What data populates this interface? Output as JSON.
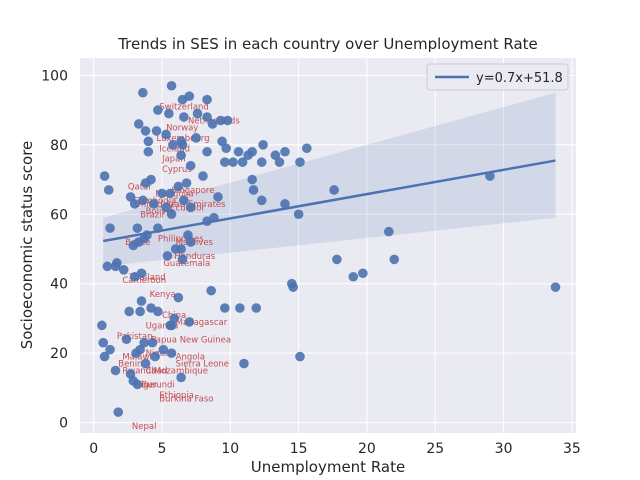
{
  "chart_data": {
    "type": "scatter",
    "title": "Trends in SES in each country over Unemployment Rate",
    "xlabel": "Unemployment Rate",
    "ylabel": "Socioeconomic status score",
    "xlim": [
      -1.0,
      35.3
    ],
    "ylim": [
      -3.0,
      105.0
    ],
    "xticks": [
      0,
      5,
      10,
      15,
      20,
      25,
      30,
      35
    ],
    "yticks": [
      0,
      20,
      40,
      60,
      80,
      100
    ],
    "grid": true,
    "legend": {
      "position": "top-right",
      "label": "y=0.7x+51.8"
    },
    "regression": {
      "slope": 0.7,
      "intercept": 51.8,
      "x_range": [
        0.7,
        33.8
      ],
      "ci_left": [
        59,
        45
      ],
      "ci_right": [
        95,
        59
      ]
    },
    "colors": {
      "points": "#4c72b0",
      "line": "#4c72b0",
      "band": "#4c72b0",
      "labels": "#c44e52",
      "background": "#eaeaf2",
      "grid": "#ffffff"
    },
    "points": [
      [
        5.7,
        97
      ],
      [
        3.6,
        95
      ],
      [
        4.7,
        90
      ],
      [
        6.5,
        93
      ],
      [
        7.0,
        94
      ],
      [
        8.3,
        93
      ],
      [
        5.5,
        89
      ],
      [
        6.6,
        88
      ],
      [
        7.6,
        89
      ],
      [
        8.3,
        88
      ],
      [
        9.3,
        87
      ],
      [
        9.8,
        87
      ],
      [
        3.3,
        86
      ],
      [
        3.8,
        84
      ],
      [
        4.6,
        84
      ],
      [
        5.3,
        83
      ],
      [
        6.4,
        81
      ],
      [
        7.5,
        82
      ],
      [
        8.7,
        86
      ],
      [
        9.4,
        81
      ],
      [
        9.7,
        79
      ],
      [
        4.0,
        81
      ],
      [
        5.8,
        80
      ],
      [
        6.5,
        80
      ],
      [
        8.3,
        78
      ],
      [
        10.2,
        75
      ],
      [
        10.9,
        75
      ],
      [
        11.6,
        78
      ],
      [
        12.4,
        80
      ],
      [
        13.3,
        77
      ],
      [
        14.0,
        78
      ],
      [
        15.6,
        79
      ],
      [
        4.0,
        78
      ],
      [
        6.4,
        77
      ],
      [
        7.1,
        74
      ],
      [
        9.6,
        75
      ],
      [
        10.6,
        78
      ],
      [
        11.3,
        77
      ],
      [
        12.3,
        75
      ],
      [
        13.6,
        75
      ],
      [
        15.1,
        75
      ],
      [
        0.8,
        71
      ],
      [
        1.1,
        67
      ],
      [
        3.8,
        69
      ],
      [
        4.2,
        70
      ],
      [
        5.0,
        66
      ],
      [
        5.6,
        66
      ],
      [
        6.2,
        68
      ],
      [
        6.8,
        69
      ],
      [
        8.0,
        71
      ],
      [
        9.1,
        65
      ],
      [
        11.6,
        70
      ],
      [
        11.7,
        67
      ],
      [
        12.3,
        64
      ],
      [
        14.0,
        63
      ],
      [
        15.0,
        60
      ],
      [
        17.6,
        67
      ],
      [
        2.7,
        65
      ],
      [
        3.0,
        63
      ],
      [
        3.6,
        64
      ],
      [
        4.4,
        63
      ],
      [
        5.3,
        62
      ],
      [
        5.7,
        60
      ],
      [
        6.6,
        64
      ],
      [
        7.1,
        62
      ],
      [
        8.3,
        58
      ],
      [
        8.8,
        59
      ],
      [
        1.2,
        56
      ],
      [
        3.2,
        56
      ],
      [
        3.9,
        54
      ],
      [
        4.7,
        56
      ],
      [
        3.3,
        52
      ],
      [
        3.7,
        53
      ],
      [
        2.9,
        51
      ],
      [
        6.0,
        50
      ],
      [
        6.9,
        54
      ],
      [
        7.1,
        52
      ],
      [
        5.4,
        48
      ],
      [
        6.5,
        47
      ],
      [
        6.4,
        50
      ],
      [
        1.0,
        45
      ],
      [
        1.7,
        46
      ],
      [
        2.2,
        44
      ],
      [
        3.0,
        42
      ],
      [
        3.5,
        43
      ],
      [
        1.6,
        45
      ],
      [
        8.6,
        38
      ],
      [
        6.2,
        36
      ],
      [
        9.6,
        33
      ],
      [
        10.7,
        33
      ],
      [
        11.9,
        33
      ],
      [
        14.5,
        40
      ],
      [
        14.6,
        39
      ],
      [
        17.8,
        47
      ],
      [
        19.0,
        42
      ],
      [
        19.7,
        43
      ],
      [
        21.6,
        55
      ],
      [
        22.0,
        47
      ],
      [
        29.0,
        71
      ],
      [
        33.8,
        39
      ],
      [
        0.6,
        28
      ],
      [
        3.5,
        35
      ],
      [
        4.2,
        33
      ],
      [
        4.7,
        32
      ],
      [
        5.9,
        30
      ],
      [
        7.0,
        29
      ],
      [
        2.6,
        32
      ],
      [
        3.4,
        32
      ],
      [
        5.7,
        28
      ],
      [
        0.7,
        23
      ],
      [
        0.8,
        19
      ],
      [
        1.2,
        21
      ],
      [
        2.4,
        24
      ],
      [
        3.1,
        20
      ],
      [
        3.4,
        21
      ],
      [
        3.7,
        23
      ],
      [
        4.3,
        23
      ],
      [
        5.1,
        21
      ],
      [
        5.7,
        20
      ],
      [
        4.5,
        19
      ],
      [
        3.8,
        17
      ],
      [
        1.6,
        15
      ],
      [
        2.7,
        14
      ],
      [
        5.6,
        28
      ],
      [
        6.4,
        13
      ],
      [
        11.0,
        17
      ],
      [
        15.1,
        19
      ],
      [
        1.8,
        3
      ],
      [
        2.9,
        12
      ],
      [
        3.2,
        11
      ]
    ],
    "labels": [
      {
        "text": "Switzerland",
        "x": 4.8,
        "y": 91
      },
      {
        "text": "Netherlands",
        "x": 6.9,
        "y": 87
      },
      {
        "text": "Norway",
        "x": 5.3,
        "y": 85
      },
      {
        "text": "Luxembourg",
        "x": 4.6,
        "y": 82
      },
      {
        "text": "Iceland",
        "x": 4.8,
        "y": 79
      },
      {
        "text": "Japan",
        "x": 5.0,
        "y": 76
      },
      {
        "text": "Cyprus",
        "x": 5.0,
        "y": 73
      },
      {
        "text": "Qatar",
        "x": 2.5,
        "y": 68
      },
      {
        "text": "Singapore",
        "x": 5.7,
        "y": 67
      },
      {
        "text": "Mongolia",
        "x": 4.5,
        "y": 66
      },
      {
        "text": "United Arab Emirates",
        "x": 3.0,
        "y": 63
      },
      {
        "text": "Cambodia",
        "x": 2.9,
        "y": 64
      },
      {
        "text": "Ecuador",
        "x": 5.6,
        "y": 62
      },
      {
        "text": "Bolivia",
        "x": 3.8,
        "y": 61
      },
      {
        "text": "Brazil",
        "x": 3.4,
        "y": 60
      },
      {
        "text": "Philippines",
        "x": 4.7,
        "y": 53
      },
      {
        "text": "Maldives",
        "x": 6.0,
        "y": 52
      },
      {
        "text": "Belize",
        "x": 2.3,
        "y": 52
      },
      {
        "text": "Honduras",
        "x": 5.9,
        "y": 48
      },
      {
        "text": "Guatemala",
        "x": 5.1,
        "y": 46
      },
      {
        "text": "Thailand",
        "x": 2.6,
        "y": 42
      },
      {
        "text": "Cameroon",
        "x": 2.1,
        "y": 41
      },
      {
        "text": "Kenya",
        "x": 4.1,
        "y": 37
      },
      {
        "text": "China",
        "x": 5.0,
        "y": 31
      },
      {
        "text": "Madagascar",
        "x": 6.0,
        "y": 29
      },
      {
        "text": "Uganda",
        "x": 3.8,
        "y": 28
      },
      {
        "text": "Pakistan",
        "x": 1.7,
        "y": 25
      },
      {
        "text": "Papua New Guinea",
        "x": 4.2,
        "y": 24
      },
      {
        "text": "Nigeria",
        "x": 3.8,
        "y": 20
      },
      {
        "text": "Malawi",
        "x": 2.1,
        "y": 19
      },
      {
        "text": "Angola",
        "x": 6.0,
        "y": 19
      },
      {
        "text": "Benin",
        "x": 1.8,
        "y": 17
      },
      {
        "text": "Sierra Leone",
        "x": 6.0,
        "y": 17
      },
      {
        "text": "Rwanda",
        "x": 2.1,
        "y": 15
      },
      {
        "text": "Chad",
        "x": 3.8,
        "y": 15
      },
      {
        "text": "Mozambique",
        "x": 4.4,
        "y": 15
      },
      {
        "text": "Niger",
        "x": 3.0,
        "y": 11
      },
      {
        "text": "Burundi",
        "x": 3.5,
        "y": 11
      },
      {
        "text": "Ethiopia",
        "x": 4.8,
        "y": 8
      },
      {
        "text": "Burkina Faso",
        "x": 4.8,
        "y": 7
      },
      {
        "text": "Nepal",
        "x": 2.8,
        "y": -1
      }
    ]
  }
}
